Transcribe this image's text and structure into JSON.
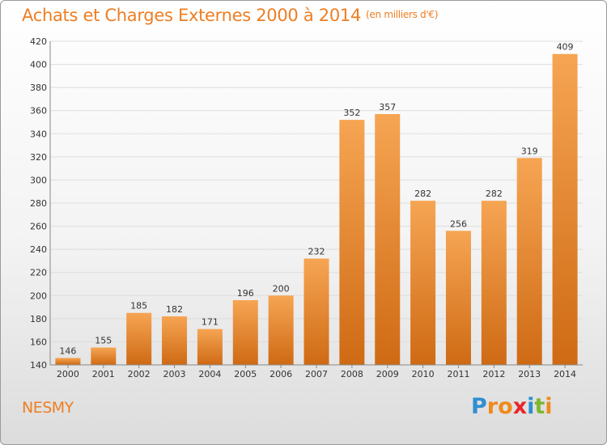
{
  "header": {
    "title": "Achats et Charges Externes 2000 à 2014",
    "subtitle": "(en milliers d'€)"
  },
  "footer": {
    "place": "NESMY",
    "logo_letters": [
      {
        "ch": "P",
        "color": "#2f8fd1"
      },
      {
        "ch": "r",
        "color": "#f08a1c"
      },
      {
        "ch": "o",
        "color": "#f08a1c"
      },
      {
        "ch": "x",
        "color": "#e8262a"
      },
      {
        "ch": "i",
        "color": "#2f8fd1"
      },
      {
        "ch": "t",
        "color": "#7cb82f"
      },
      {
        "ch": "i",
        "color": "#f08a1c"
      }
    ]
  },
  "colors": {
    "bar_top": "#f6a553",
    "bar_bottom": "#cf6a14",
    "grid": "#dddddd",
    "axis": "#888888",
    "title": "#ee7e23"
  },
  "chart_data": {
    "type": "bar",
    "title": "Achats et Charges Externes 2000 à 2014",
    "subtitle": "(en milliers d'€)",
    "categories": [
      "2000",
      "2001",
      "2002",
      "2003",
      "2004",
      "2005",
      "2006",
      "2007",
      "2008",
      "2009",
      "2010",
      "2011",
      "2012",
      "2013",
      "2014"
    ],
    "values": [
      146,
      155,
      185,
      182,
      171,
      196,
      200,
      232,
      352,
      357,
      282,
      256,
      282,
      319,
      409
    ],
    "ylim": [
      140,
      420
    ],
    "yticks": [
      140,
      160,
      180,
      200,
      220,
      240,
      260,
      280,
      300,
      320,
      340,
      360,
      380,
      400,
      420
    ],
    "grid": true,
    "data_labels": true
  }
}
